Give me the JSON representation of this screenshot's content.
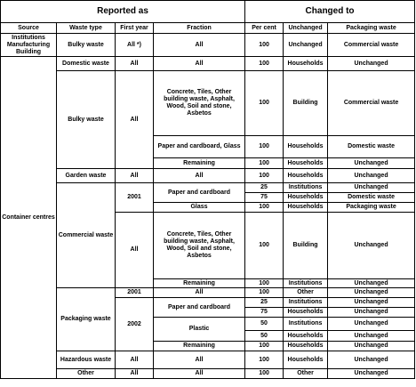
{
  "headers": {
    "reported_as": "Reported as",
    "changed_to": "Changed to",
    "source": "Source",
    "waste_type": "Waste type",
    "first_year": "First year",
    "fraction": "Fraction",
    "per_cent": "Per cent",
    "unchanged": "Unchanged",
    "packaging_waste": "Packaging waste"
  },
  "sources": {
    "institutions": "Institutions Manufacturing Building",
    "container_centres": "Container centres"
  },
  "rows": [
    {
      "waste_type": "Bulky waste",
      "first_year": "All *)",
      "fraction": "All",
      "per_cent": "100",
      "unchanged": "Unchanged",
      "packaging": "Commercial waste"
    },
    {
      "waste_type": "Domestic waste",
      "first_year": "All",
      "fraction": "All",
      "per_cent": "100",
      "unchanged": "Households",
      "packaging": "Unchanged"
    },
    {
      "waste_type": "Bulky waste",
      "first_year": "All",
      "fraction": "Concrete, Tiles, Other building waste, Asphalt, Wood, Soil and stone, Asbetos",
      "per_cent": "100",
      "unchanged": "Building",
      "packaging": "Commercial waste"
    },
    {
      "fraction": "Paper and cardboard, Glass",
      "per_cent": "100",
      "unchanged": "Households",
      "packaging": "Domestic waste"
    },
    {
      "fraction": "Remaining",
      "per_cent": "100",
      "unchanged": "Households",
      "packaging": "Unchanged"
    },
    {
      "waste_type": "Garden waste",
      "first_year": "All",
      "fraction": "All",
      "per_cent": "100",
      "unchanged": "Households",
      "packaging": "Unchanged"
    },
    {
      "waste_type": "Commercial waste",
      "first_year": "2001",
      "fraction": "Paper and cardboard",
      "per_cent": "25",
      "unchanged": "Institutions",
      "packaging": "Unchanged"
    },
    {
      "per_cent": "75",
      "unchanged": "Households",
      "packaging": "Domestic waste"
    },
    {
      "fraction": "Glass",
      "per_cent": "100",
      "unchanged": "Households",
      "packaging": "Packaging waste"
    },
    {
      "first_year": "All",
      "fraction": "Concrete, Tiles, Other building waste, Asphalt, Wood, Soil and stone, Asbetos",
      "per_cent": "100",
      "unchanged": "Building",
      "packaging": "Unchanged"
    },
    {
      "fraction": "Remaining",
      "per_cent": "100",
      "unchanged": "Institutions",
      "packaging": "Unchanged"
    },
    {
      "waste_type": "Packaging waste",
      "first_year": "2001",
      "fraction": "All",
      "per_cent": "100",
      "unchanged": "Other",
      "packaging": "Unchanged"
    },
    {
      "first_year": "2002",
      "fraction": "Paper and cardboard",
      "per_cent": "25",
      "unchanged": "Institutions",
      "packaging": "Unchanged"
    },
    {
      "per_cent": "75",
      "unchanged": "Households",
      "packaging": "Unchanged"
    },
    {
      "fraction": "Plastic",
      "per_cent": "50",
      "unchanged": "Institutions",
      "packaging": "Unchanged"
    },
    {
      "per_cent": "50",
      "unchanged": "Households",
      "packaging": "Unchanged"
    },
    {
      "fraction": "Remaining",
      "per_cent": "100",
      "unchanged": "Households",
      "packaging": "Unchanged"
    },
    {
      "waste_type": "Hazardous waste",
      "first_year": "All",
      "fraction": "All",
      "per_cent": "100",
      "unchanged": "Households",
      "packaging": "Unchanged"
    },
    {
      "waste_type": "Other",
      "first_year": "All",
      "fraction": "All",
      "per_cent": "100",
      "unchanged": "Other",
      "packaging": "Unchanged"
    }
  ]
}
